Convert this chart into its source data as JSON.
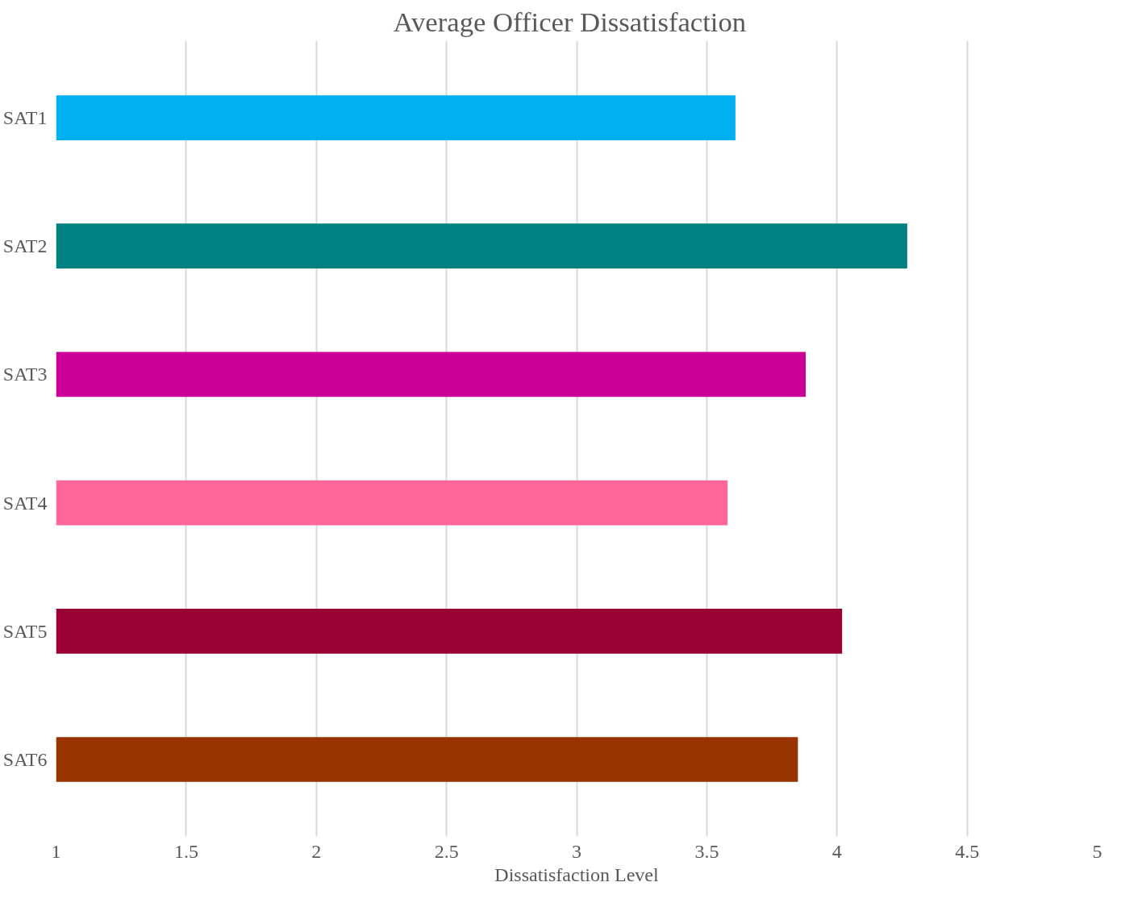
{
  "chart_data": {
    "type": "bar",
    "orientation": "horizontal",
    "title": "Average  Officer  Dissatisfaction",
    "xlabel": "Dissatisfaction Level",
    "categories": [
      "SAT1",
      "SAT2",
      "SAT3",
      "SAT4",
      "SAT5",
      "SAT6"
    ],
    "values": [
      3.61,
      4.27,
      3.88,
      3.58,
      4.02,
      3.85
    ],
    "colors": [
      "#00b0f0",
      "#008080",
      "#cc0099",
      "#ff6699",
      "#990033",
      "#993300"
    ],
    "xlim": [
      1,
      5
    ],
    "xticks": [
      1,
      1.5,
      2,
      2.5,
      3,
      3.5,
      4,
      4.5,
      5
    ],
    "grid": "x"
  }
}
